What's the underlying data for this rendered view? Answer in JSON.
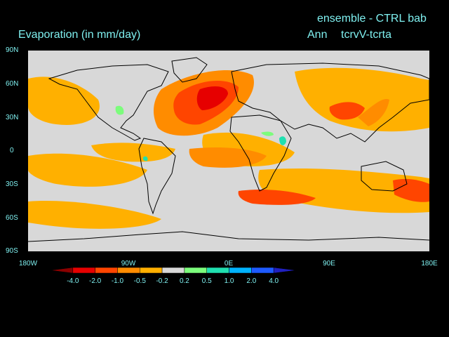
{
  "title": {
    "left": "Evaporation (in mm/day)",
    "right_line1": "ensemble - CTRL bab",
    "right_line2_a": "Ann",
    "right_line2_b": "tcrvV-tcrta"
  },
  "lat_labels": [
    "90N",
    "60N",
    "30N",
    "0",
    "30S",
    "60S",
    "90S"
  ],
  "lon_labels": [
    "180W",
    "90W",
    "0E",
    "90E",
    "180E"
  ],
  "colorbar": {
    "levels": [
      "-4.0",
      "-2.0",
      "-1.0",
      "-0.5",
      "-0.2",
      "0.2",
      "0.5",
      "1.0",
      "2.0",
      "4.0"
    ],
    "colors": [
      "#8b0000",
      "#e60000",
      "#ff4500",
      "#ff8c00",
      "#ffb000",
      "#d8d8d8",
      "#7cfc7c",
      "#20e0b0",
      "#00b4ff",
      "#1e5aff",
      "#2020c0"
    ]
  },
  "colors": {
    "background": "#000000",
    "ocean_neutral": "#d8d8d8",
    "text": "#7ff0f0"
  }
}
